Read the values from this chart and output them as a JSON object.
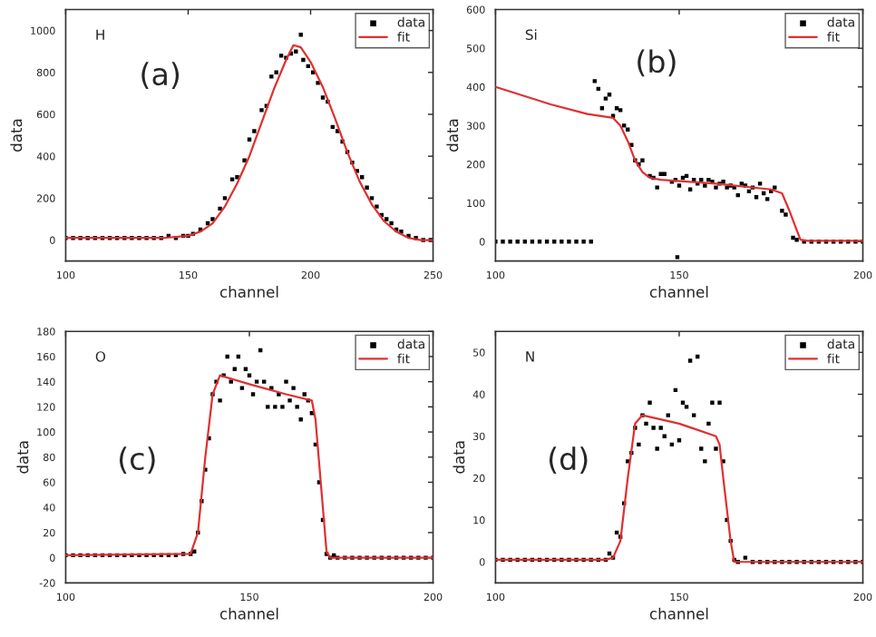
{
  "chart_data": [
    {
      "type": "scatter",
      "xlabel": "channel",
      "ylabel": "data",
      "annotations": [
        "H",
        "(a)"
      ],
      "xlim": [
        100,
        250
      ],
      "xticks": [
        100,
        150,
        200,
        250
      ],
      "ylim": [
        -100,
        1100
      ],
      "yticks": [
        0,
        200,
        400,
        600,
        800,
        1000
      ],
      "grid": false,
      "legend": "top right",
      "series": [
        {
          "name": "data",
          "type": "scatter",
          "color": "#000000",
          "marker": "square",
          "x": [
            100,
            103,
            106,
            109,
            112,
            115,
            118,
            121,
            124,
            127,
            130,
            133,
            136,
            139,
            142,
            145,
            148,
            150,
            152,
            155,
            158,
            160,
            163,
            165,
            168,
            170,
            173,
            175,
            177,
            180,
            182,
            184,
            186,
            188,
            190,
            192,
            194,
            196,
            197,
            199,
            201,
            203,
            205,
            207,
            209,
            211,
            213,
            215,
            217,
            219,
            221,
            223,
            225,
            227,
            229,
            231,
            233,
            235,
            237,
            240,
            243,
            246,
            249
          ],
          "values": [
            10,
            10,
            10,
            10,
            10,
            10,
            10,
            10,
            10,
            10,
            10,
            10,
            10,
            10,
            20,
            10,
            20,
            20,
            30,
            50,
            80,
            100,
            150,
            200,
            290,
            300,
            380,
            480,
            520,
            620,
            640,
            780,
            800,
            880,
            870,
            890,
            900,
            980,
            860,
            830,
            800,
            750,
            680,
            660,
            540,
            520,
            470,
            420,
            370,
            330,
            300,
            250,
            200,
            160,
            120,
            100,
            80,
            50,
            40,
            20,
            10,
            0,
            0
          ]
        },
        {
          "name": "fit",
          "type": "line",
          "color": "#e03030",
          "line_style": "solid",
          "x": [
            100,
            140,
            150,
            155,
            160,
            165,
            170,
            175,
            180,
            185,
            190,
            193,
            196,
            200,
            205,
            210,
            215,
            220,
            225,
            230,
            235,
            240,
            245,
            250
          ],
          "values": [
            10,
            10,
            20,
            40,
            80,
            160,
            270,
            400,
            560,
            720,
            860,
            930,
            920,
            850,
            730,
            580,
            420,
            280,
            170,
            90,
            40,
            10,
            0,
            0
          ]
        }
      ]
    },
    {
      "type": "scatter",
      "xlabel": "channel",
      "ylabel": "data",
      "annotations": [
        "Si",
        "(b)"
      ],
      "xlim": [
        100,
        200
      ],
      "xticks": [
        100,
        150,
        200
      ],
      "ylim": [
        -50,
        600
      ],
      "yticks": [
        0,
        100,
        200,
        300,
        400,
        500,
        600
      ],
      "grid": false,
      "legend": "top right",
      "series": [
        {
          "name": "data",
          "type": "scatter",
          "color": "#000000",
          "marker": "square",
          "x": [
            100,
            102,
            104,
            106,
            108,
            110,
            112,
            114,
            116,
            118,
            120,
            122,
            124,
            126,
            127,
            128,
            129,
            130,
            131,
            132,
            133,
            134,
            135,
            136,
            137,
            138,
            139,
            140,
            142,
            143,
            144,
            145,
            146,
            148,
            149,
            149.5,
            150,
            151,
            152,
            153,
            154,
            155,
            156,
            157,
            158,
            159,
            160,
            161,
            162,
            163,
            164,
            165,
            166,
            167,
            168,
            169,
            170,
            171,
            172,
            173,
            174,
            175,
            176,
            178,
            179,
            181,
            182,
            184,
            186,
            188,
            190,
            192,
            194,
            196,
            198,
            200
          ],
          "values": [
            0,
            0,
            0,
            0,
            0,
            0,
            0,
            0,
            0,
            0,
            0,
            0,
            0,
            0,
            415,
            395,
            345,
            370,
            380,
            325,
            345,
            340,
            300,
            290,
            250,
            210,
            200,
            210,
            170,
            165,
            140,
            175,
            175,
            155,
            160,
            -40,
            145,
            165,
            170,
            135,
            160,
            150,
            160,
            145,
            160,
            155,
            140,
            150,
            155,
            140,
            145,
            140,
            120,
            150,
            145,
            130,
            140,
            115,
            150,
            125,
            110,
            130,
            140,
            80,
            70,
            10,
            5,
            0,
            0,
            0,
            0,
            0,
            0,
            0,
            0,
            0
          ]
        },
        {
          "name": "fit",
          "type": "line",
          "color": "#e03030",
          "line_style": "solid",
          "x": [
            100,
            115,
            125,
            132,
            134,
            136,
            138,
            140,
            142,
            145,
            160,
            175,
            178,
            180,
            182,
            183,
            185,
            200
          ],
          "values": [
            400,
            355,
            330,
            320,
            300,
            260,
            210,
            180,
            165,
            160,
            150,
            135,
            125,
            80,
            30,
            5,
            2,
            2
          ]
        }
      ]
    },
    {
      "type": "scatter",
      "xlabel": "channel",
      "ylabel": "data",
      "annotations": [
        "O",
        "(c)"
      ],
      "xlim": [
        100,
        200
      ],
      "xticks": [
        100,
        150,
        200
      ],
      "ylim": [
        -20,
        180
      ],
      "yticks": [
        -20,
        0,
        20,
        40,
        60,
        80,
        100,
        120,
        140,
        160,
        180
      ],
      "grid": false,
      "legend": "top right",
      "series": [
        {
          "name": "data",
          "type": "scatter",
          "color": "#000000",
          "marker": "square",
          "x": [
            100,
            102,
            104,
            106,
            108,
            110,
            112,
            114,
            116,
            118,
            120,
            122,
            124,
            126,
            128,
            130,
            132,
            134,
            135,
            136,
            137,
            138,
            139,
            140,
            141,
            142,
            143,
            144,
            145,
            146,
            147,
            148,
            149,
            150,
            151,
            152,
            153,
            154,
            155,
            156,
            157,
            158,
            159,
            160,
            161,
            162,
            163,
            164,
            165,
            166,
            167,
            168,
            169,
            170,
            171,
            172,
            173,
            174,
            176,
            178,
            180,
            182,
            184,
            186,
            188,
            190,
            192,
            194,
            196,
            198,
            200
          ],
          "values": [
            2,
            2,
            2,
            2,
            2,
            2,
            2,
            2,
            2,
            2,
            2,
            2,
            2,
            2,
            2,
            2,
            3,
            3,
            5,
            20,
            45,
            70,
            95,
            130,
            140,
            125,
            145,
            160,
            140,
            150,
            160,
            135,
            150,
            145,
            130,
            140,
            165,
            140,
            120,
            135,
            120,
            130,
            120,
            140,
            125,
            135,
            120,
            110,
            130,
            125,
            115,
            90,
            60,
            30,
            3,
            0,
            2,
            0,
            0,
            0,
            0,
            0,
            0,
            0,
            0,
            0,
            0,
            0,
            0,
            0,
            0
          ]
        },
        {
          "name": "fit",
          "type": "line",
          "color": "#e03030",
          "line_style": "solid",
          "x": [
            100,
            134,
            136,
            138,
            140,
            142,
            150,
            160,
            167,
            168,
            170,
            171,
            172,
            200
          ],
          "values": [
            2,
            3,
            20,
            80,
            130,
            145,
            138,
            130,
            125,
            110,
            40,
            5,
            0,
            0
          ]
        }
      ]
    },
    {
      "type": "scatter",
      "xlabel": "channel",
      "ylabel": "data",
      "annotations": [
        "N",
        "(d)"
      ],
      "xlim": [
        100,
        200
      ],
      "xticks": [
        100,
        150,
        200
      ],
      "ylim": [
        -5,
        55
      ],
      "yticks": [
        0,
        10,
        20,
        30,
        40,
        50
      ],
      "grid": false,
      "legend": "top right",
      "series": [
        {
          "name": "data",
          "type": "scatter",
          "color": "#000000",
          "marker": "square",
          "x": [
            100,
            102,
            104,
            106,
            108,
            110,
            112,
            114,
            116,
            118,
            120,
            122,
            124,
            126,
            128,
            130,
            131,
            132,
            133,
            134,
            135,
            136,
            137,
            138,
            139,
            140,
            141,
            142,
            143,
            144,
            145,
            146,
            147,
            148,
            149,
            150,
            151,
            152,
            153,
            154,
            155,
            156,
            157,
            158,
            159,
            160,
            161,
            162,
            163,
            164,
            165,
            166,
            168,
            170,
            172,
            174,
            176,
            178,
            180,
            182,
            184,
            186,
            188,
            190,
            192,
            194,
            196,
            198,
            200
          ],
          "values": [
            0.5,
            0.5,
            0.5,
            0.5,
            0.5,
            0.5,
            0.5,
            0.5,
            0.5,
            0.5,
            0.5,
            0.5,
            0.5,
            0.5,
            0.5,
            0.5,
            2,
            1,
            7,
            6,
            14,
            24,
            26,
            32,
            28,
            35,
            33,
            38,
            32,
            27,
            32,
            30,
            35,
            28,
            41,
            29,
            38,
            37,
            48,
            35,
            49,
            27,
            24,
            33,
            38,
            27,
            38,
            24,
            10,
            5,
            0.5,
            0,
            1,
            0,
            0,
            0,
            0,
            0,
            0,
            0,
            0,
            0,
            0,
            0,
            0,
            0,
            0,
            0,
            0
          ]
        },
        {
          "name": "fit",
          "type": "line",
          "color": "#e03030",
          "line_style": "solid",
          "x": [
            100,
            130,
            132,
            134,
            136,
            138,
            140,
            150,
            160,
            161,
            162,
            164,
            165,
            200
          ],
          "values": [
            0.5,
            0.5,
            1,
            5,
            20,
            33,
            35,
            33,
            30,
            28,
            20,
            5,
            0,
            0
          ]
        }
      ]
    }
  ]
}
